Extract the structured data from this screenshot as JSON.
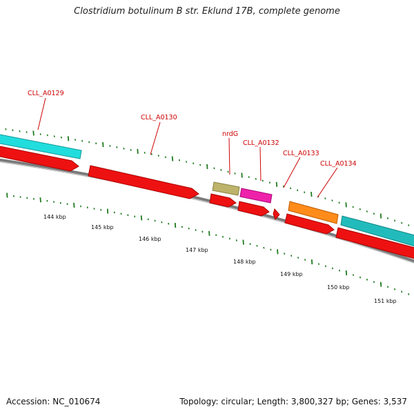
{
  "title": "Clostridium botulinum B str. Eklund 17B, complete genome",
  "footer": {
    "accession": "Accession: NC_010674",
    "summary": "Topology: circular; Length: 3,800,327 bp; Genes: 3,537"
  },
  "colors": {
    "backbone": "#7a7a7a",
    "tick": "#1f7a1f",
    "label": "#cc0000",
    "cds": "#ee1111",
    "cyan": "#22dddd",
    "teal": "#22bbbb",
    "olive": "#bdb36b",
    "magenta": "#ee22aa",
    "orange": "#ff8c1a"
  },
  "gene_labels": [
    "CLL_A0129",
    "CLL_A0130",
    "nrdG",
    "CLL_A0132",
    "CLL_A0133",
    "CLL_A0134"
  ],
  "kbp_labels": [
    "144 kbp",
    "145 kbp",
    "146 kbp",
    "147 kbp",
    "148 kbp",
    "149 kbp",
    "150 kbp",
    "151 kbp"
  ]
}
